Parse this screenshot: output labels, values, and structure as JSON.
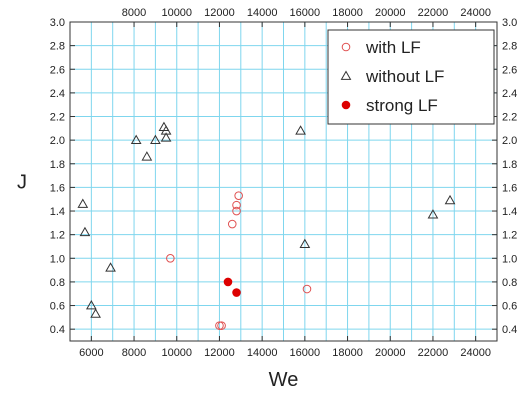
{
  "chart_data": {
    "type": "scatter",
    "xlabel": "We",
    "ylabel": "J",
    "xlim": [
      5000,
      25000
    ],
    "ylim": [
      0.3,
      3.0
    ],
    "grid": true,
    "legend_position": "top-right",
    "x_ticks_bottom": [
      "6000",
      "8000",
      "10000",
      "12000",
      "14000",
      "16000",
      "18000",
      "20000",
      "22000",
      "24000"
    ],
    "x_ticks_top": [
      "8000",
      "10000",
      "12000",
      "14000",
      "16000",
      "18000",
      "20000",
      "22000",
      "24000"
    ],
    "y_ticks": [
      "0.4",
      "0.6",
      "0.8",
      "1.0",
      "1.2",
      "1.4",
      "1.6",
      "1.8",
      "2.0",
      "2.2",
      "2.4",
      "2.6",
      "2.8",
      "3.0"
    ],
    "colors": {
      "grid": "#7fd6ee",
      "with_lf": "#e05050",
      "without_lf": "#333333",
      "strong_lf": "#dd0000",
      "axis": "#333333"
    },
    "series": [
      {
        "name": "with LF",
        "marker": "open-circle",
        "points": [
          {
            "x": 9700,
            "y": 1.0
          },
          {
            "x": 12000,
            "y": 0.43
          },
          {
            "x": 12100,
            "y": 0.43
          },
          {
            "x": 12600,
            "y": 1.29
          },
          {
            "x": 12800,
            "y": 1.4
          },
          {
            "x": 12800,
            "y": 1.45
          },
          {
            "x": 12900,
            "y": 1.53
          },
          {
            "x": 16100,
            "y": 0.74
          }
        ]
      },
      {
        "name": "without LF",
        "marker": "open-triangle",
        "points": [
          {
            "x": 5600,
            "y": 1.46
          },
          {
            "x": 5700,
            "y": 1.22
          },
          {
            "x": 6000,
            "y": 0.6
          },
          {
            "x": 6200,
            "y": 0.53
          },
          {
            "x": 6900,
            "y": 0.92
          },
          {
            "x": 8100,
            "y": 2.0
          },
          {
            "x": 8600,
            "y": 1.86
          },
          {
            "x": 9000,
            "y": 2.0
          },
          {
            "x": 9400,
            "y": 2.11
          },
          {
            "x": 9500,
            "y": 2.08
          },
          {
            "x": 9500,
            "y": 2.02
          },
          {
            "x": 15800,
            "y": 2.08
          },
          {
            "x": 16000,
            "y": 1.12
          },
          {
            "x": 22000,
            "y": 1.37
          },
          {
            "x": 22800,
            "y": 1.49
          }
        ]
      },
      {
        "name": "strong LF",
        "marker": "filled-circle",
        "points": [
          {
            "x": 12400,
            "y": 0.8
          },
          {
            "x": 12800,
            "y": 0.71
          }
        ]
      }
    ]
  }
}
